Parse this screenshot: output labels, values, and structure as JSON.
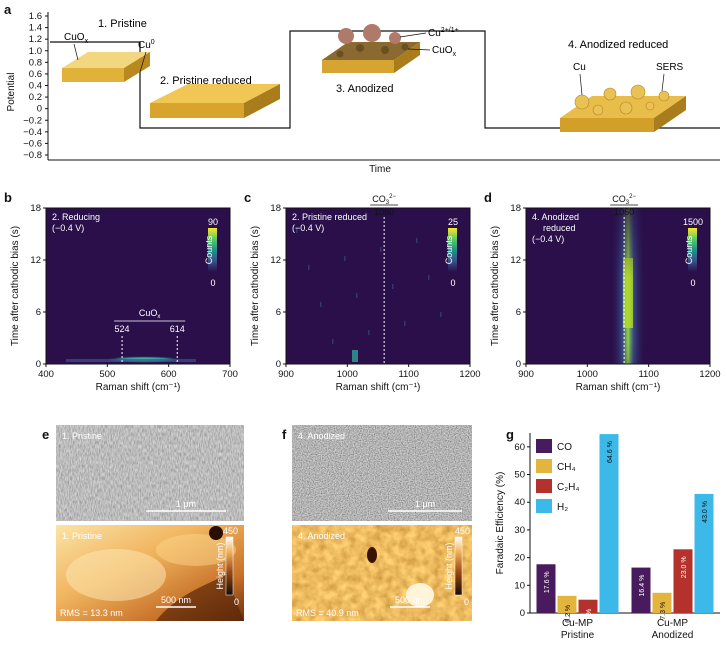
{
  "panel_labels": {
    "a": "a",
    "b": "b",
    "c": "c",
    "d": "d",
    "e": "e",
    "f": "f",
    "g": "g"
  },
  "panel_a": {
    "ylabel": "Potential",
    "xlabel": "Time",
    "yticks": [
      "1.6",
      "1.4",
      "1.2",
      "1.0",
      "0.8",
      "0.6",
      "0.4",
      "0.2",
      "0",
      "−0.2",
      "−0.4",
      "−0.6",
      "−0.8"
    ],
    "labels": {
      "pristine": "1. Pristine",
      "cuox": "CuO",
      "cuox_sub": "x",
      "cu0": "Cu",
      "cu0_sup": "0",
      "pristine_reduced": "2. Pristine reduced",
      "cu_ions": "Cu",
      "cu_ions_sup": "2+/1+",
      "cuox2": "CuO",
      "cuox2_sub": "x",
      "anodized": "3. Anodized",
      "anodized_reduced": "4. Anodized reduced",
      "cu": "Cu",
      "sers": "SERS"
    },
    "colors": {
      "gold": "#e0b23a",
      "gold_dark": "#a97c1c",
      "sphere": "#b07a6a"
    }
  },
  "heatmaps": [
    {
      "id": "b",
      "state_label": "2. Reducing",
      "bias_label": "(−0.4 V)",
      "colorbar_max": "90",
      "colorbar_min": "0",
      "colorbar_label": "Counts",
      "ylabel": "Time after cathodic bias (s)",
      "xlabel": "Raman shift (cm⁻¹)",
      "xticks": [
        "400",
        "500",
        "600",
        "700"
      ],
      "yticks": [
        "0",
        "6",
        "12",
        "18"
      ],
      "annotation_title": "CuO",
      "annotation_title_sub": "x",
      "annotation_peaks": [
        "524",
        "614"
      ]
    },
    {
      "id": "c",
      "state_label": "2. Pristine reduced",
      "bias_label": "(−0.4 V)",
      "colorbar_max": "25",
      "colorbar_min": "0",
      "colorbar_label": "Counts",
      "ylabel": "Time after cathodic bias (s)",
      "xlabel": "Raman shift (cm⁻¹)",
      "xticks": [
        "900",
        "1000",
        "1100",
        "1200"
      ],
      "yticks": [
        "0",
        "6",
        "12",
        "18"
      ],
      "annotation_title": "CO",
      "annotation_title_sub": "3",
      "annotation_title_sup": "2−",
      "annotation_peaks": [
        "1060"
      ]
    },
    {
      "id": "d",
      "state_label": "4. Anodized",
      "state_label2": "reduced",
      "bias_label": "(−0.4 V)",
      "colorbar_max": "1500",
      "colorbar_min": "0",
      "colorbar_label": "Counts",
      "ylabel": "Time after cathodic bias (s)",
      "xlabel": "Raman shift (cm⁻¹)",
      "xticks": [
        "900",
        "1000",
        "1100",
        "1200"
      ],
      "yticks": [
        "0",
        "6",
        "12",
        "18"
      ],
      "annotation_title": "CO",
      "annotation_title_sub": "3",
      "annotation_title_sup": "2−",
      "annotation_peaks": [
        "1060"
      ]
    }
  ],
  "panel_e": {
    "sem_label": "1. Pristine",
    "sem_scale": "1 μm",
    "afm_label": "1. Pristine",
    "afm_rms": "RMS = 13.3 nm",
    "afm_scale": "500 nm",
    "afm_cbar_label": "Height (nm)",
    "afm_cbar_max": "450",
    "afm_cbar_min": "0"
  },
  "panel_f": {
    "sem_label": "4. Anodized",
    "sem_scale": "1 μm",
    "afm_label": "4. Anodized",
    "afm_rms": "RMS = 40.9 nm",
    "afm_scale": "500 nm",
    "afm_cbar_label": "Height (nm)",
    "afm_cbar_max": "450",
    "afm_cbar_min": "0"
  },
  "chart_data": {
    "type": "bar",
    "title": "",
    "ylabel": "Faradaic Efficiency (%)",
    "xlabel": "",
    "ylim": [
      0,
      65
    ],
    "yticks": [
      "0",
      "10",
      "20",
      "30",
      "40",
      "50",
      "60"
    ],
    "categories": [
      "Cu-MP\nPristine",
      "Cu-MP\nAnodized"
    ],
    "category_lines": [
      [
        "Cu-MP",
        "Pristine"
      ],
      [
        "Cu-MP",
        "Anodized"
      ]
    ],
    "series": [
      {
        "name": "CO",
        "values": [
          17.6,
          16.4
        ],
        "labels": [
          "17.6 %",
          "16.4 %"
        ],
        "color": "#4a1a5e"
      },
      {
        "name": "CH₄",
        "values": [
          6.2,
          7.3
        ],
        "labels": [
          "6.2 %",
          "7.3 %"
        ],
        "color": "#e3b53e"
      },
      {
        "name": "C₂H₄",
        "values": [
          4.8,
          23.0
        ],
        "labels": [
          "4.8 %",
          "23.0 %"
        ],
        "color": "#b5312b"
      },
      {
        "name": "H₂",
        "values": [
          64.6,
          43.0
        ],
        "labels": [
          "64.6 %",
          "43.0 %"
        ],
        "color": "#3cb9e8"
      }
    ],
    "legend_position": "top-left"
  }
}
